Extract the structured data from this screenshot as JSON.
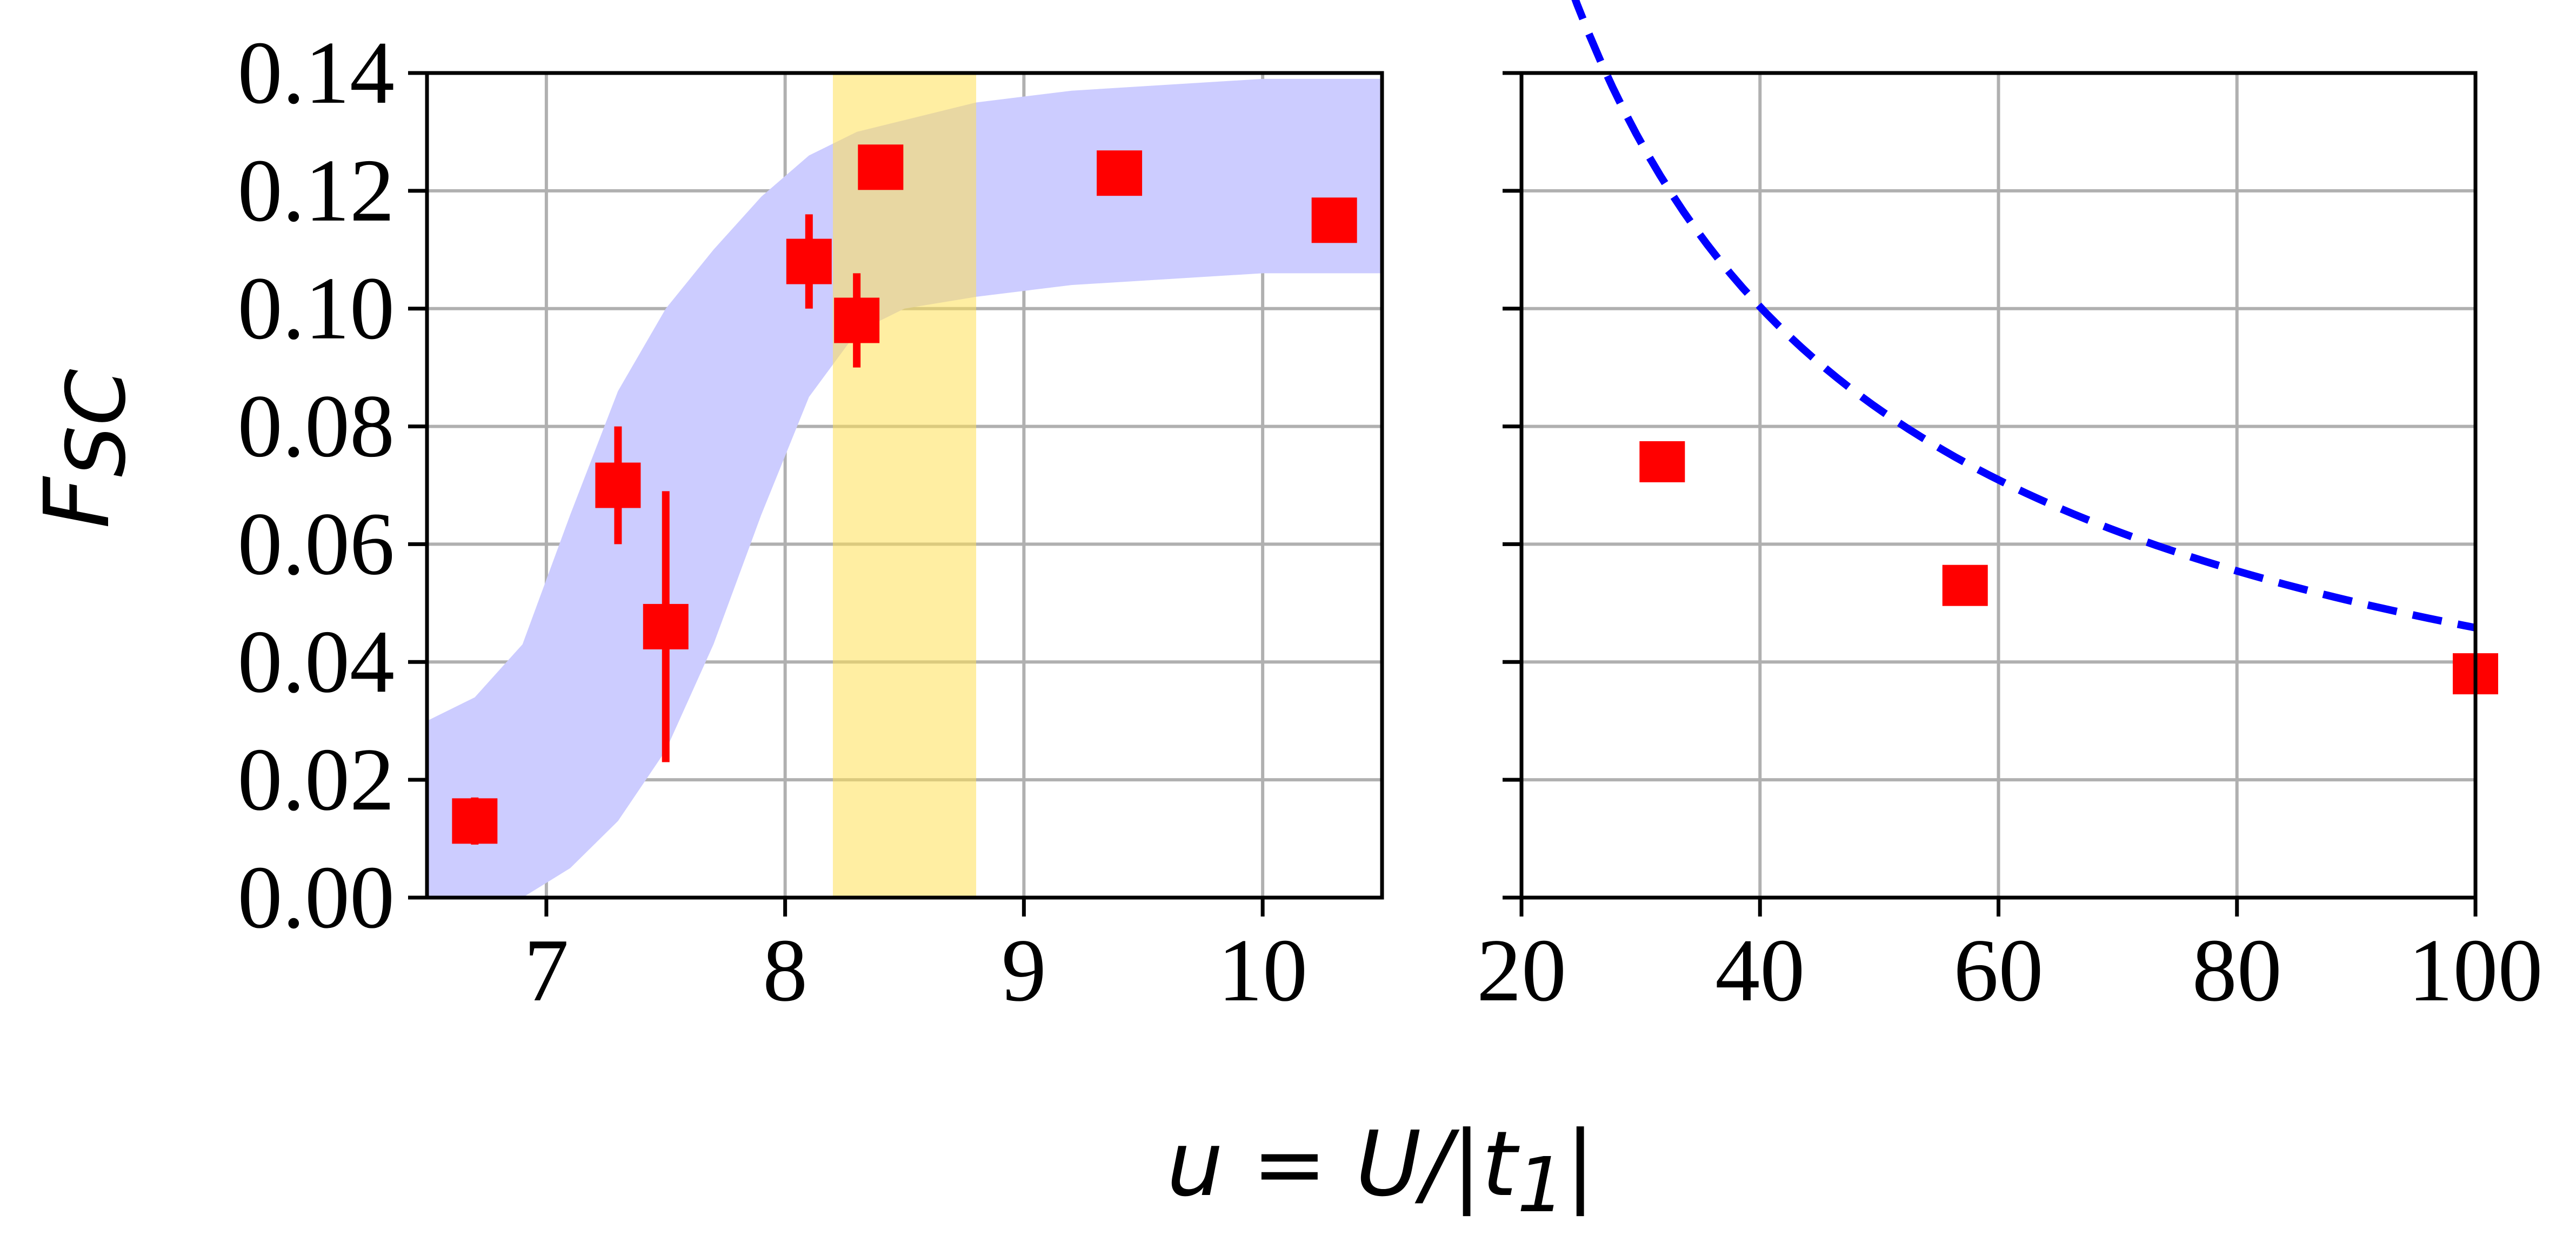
{
  "chart_data": [
    {
      "type": "scatter",
      "panel": "left",
      "xlim": [
        6.5,
        10.5
      ],
      "ylim": [
        0.0,
        0.14
      ],
      "xticks": [
        7,
        8,
        9,
        10
      ],
      "yticks": [
        0.0,
        0.02,
        0.04,
        0.06,
        0.08,
        0.1,
        0.12,
        0.14
      ],
      "ytick_labels": [
        "0.00",
        "0.02",
        "0.04",
        "0.06",
        "0.08",
        "0.10",
        "0.12",
        "0.14"
      ],
      "grid": true,
      "points": [
        {
          "x": 6.7,
          "y": 0.013,
          "yerr": 0.004
        },
        {
          "x": 7.3,
          "y": 0.07,
          "yerr": 0.01
        },
        {
          "x": 7.5,
          "y": 0.046,
          "yerr": 0.023
        },
        {
          "x": 8.1,
          "y": 0.108,
          "yerr": 0.008
        },
        {
          "x": 8.3,
          "y": 0.098,
          "yerr": 0.008
        },
        {
          "x": 8.4,
          "y": 0.124,
          "yerr": 0.002
        },
        {
          "x": 9.4,
          "y": 0.123,
          "yerr": 0.002
        },
        {
          "x": 10.3,
          "y": 0.115,
          "yerr": 0.002
        }
      ],
      "band": {
        "color": "#ccccff",
        "x": [
          6.5,
          6.7,
          6.9,
          7.1,
          7.3,
          7.5,
          7.7,
          7.9,
          8.1,
          8.3,
          8.5,
          8.8,
          9.2,
          9.6,
          10.0,
          10.5
        ],
        "lower": [
          0.0,
          0.0,
          0.0,
          0.005,
          0.013,
          0.025,
          0.043,
          0.065,
          0.085,
          0.096,
          0.1,
          0.102,
          0.104,
          0.105,
          0.106,
          0.106
        ],
        "upper": [
          0.03,
          0.034,
          0.043,
          0.065,
          0.086,
          0.1,
          0.11,
          0.119,
          0.126,
          0.13,
          0.132,
          0.135,
          0.137,
          0.138,
          0.139,
          0.139
        ]
      },
      "highlight": {
        "x0": 8.2,
        "x1": 8.8,
        "color": "#fff09a"
      },
      "marker_color": "#ff0000"
    },
    {
      "type": "scatter",
      "panel": "right",
      "xlim": [
        20,
        100
      ],
      "ylim": [
        0.0,
        0.14
      ],
      "xticks": [
        20,
        40,
        60,
        80,
        100
      ],
      "grid": true,
      "points": [
        {
          "x": 31.8,
          "y": 0.074
        },
        {
          "x": 57.2,
          "y": 0.053
        },
        {
          "x": 100,
          "y": 0.038
        }
      ],
      "fit": {
        "style": "dashed",
        "color": "#0000ff",
        "x_range": [
          20.7,
          100
        ],
        "formula": "F = 2.35 / x^(0.855)"
      },
      "marker_color": "#ff0000"
    }
  ],
  "labels": {
    "ylabel_main": "F",
    "ylabel_sub": "SC",
    "xlabel_left": "u = U/|t",
    "xlabel_sub": "1",
    "xlabel_right": "|"
  }
}
